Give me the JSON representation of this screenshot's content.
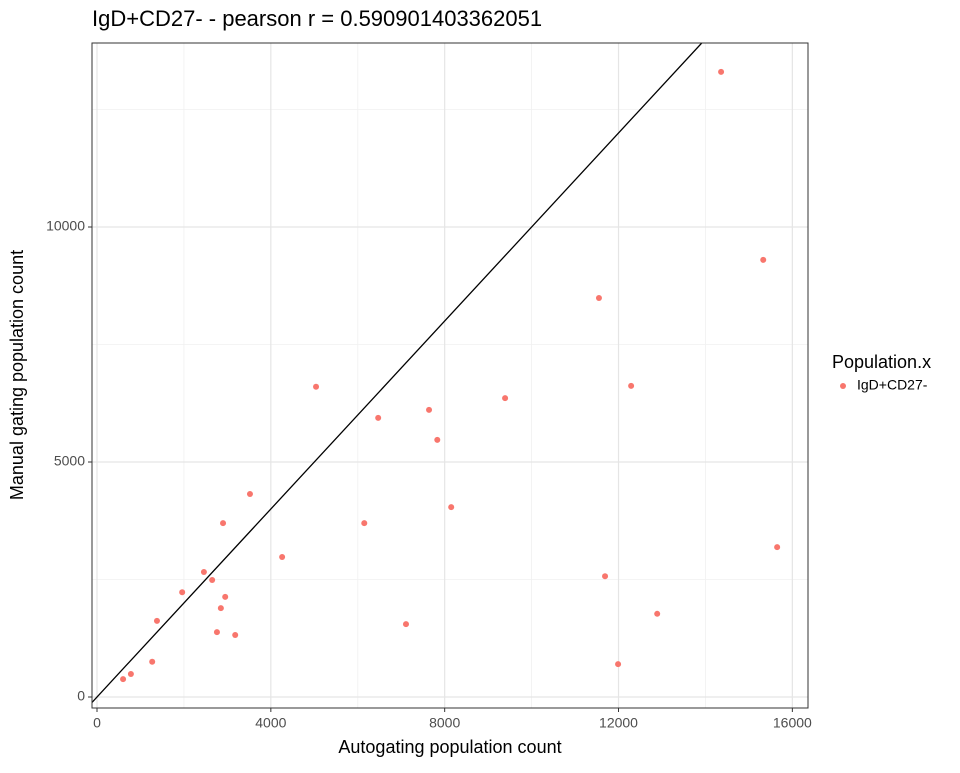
{
  "chart_data": {
    "type": "scatter",
    "title": "IgD+CD27- - pearson r = 0.590901403362051",
    "x_label": "Autogating population count",
    "y_label": "Manual gating population count",
    "legend_title": "Population.x",
    "legend_position": "right",
    "x": [
      14360,
      15330,
      11550,
      12290,
      5040,
      9390,
      7640,
      6470,
      7830,
      3520,
      8150,
      2900,
      6150,
      15650,
      4260,
      2460,
      11690,
      2650,
      1960,
      2950,
      2850,
      12890,
      1380,
      7110,
      2760,
      3180,
      1270,
      11990,
      780,
      600
    ],
    "series": [
      {
        "name": "IgD+CD27-",
        "color": "#F8766D",
        "values": [
          13300,
          9300,
          8490,
          6620,
          6600,
          6360,
          6110,
          5940,
          5470,
          4320,
          4040,
          3700,
          3700,
          3190,
          2980,
          2660,
          2570,
          2490,
          2230,
          2130,
          1890,
          1770,
          1620,
          1550,
          1380,
          1320,
          750,
          700,
          490,
          380
        ]
      }
    ],
    "xlim": [
      -115,
      16360
    ],
    "ylim": [
      -234,
      13915
    ],
    "xticks": [
      0,
      4000,
      8000,
      12000,
      16000
    ],
    "yticks": [
      0,
      5000,
      10000
    ],
    "minor_xticks": [
      2000,
      6000,
      10000,
      14000
    ],
    "minor_yticks": [
      2500,
      7500,
      12500
    ],
    "grid": true,
    "identity_line": true
  }
}
